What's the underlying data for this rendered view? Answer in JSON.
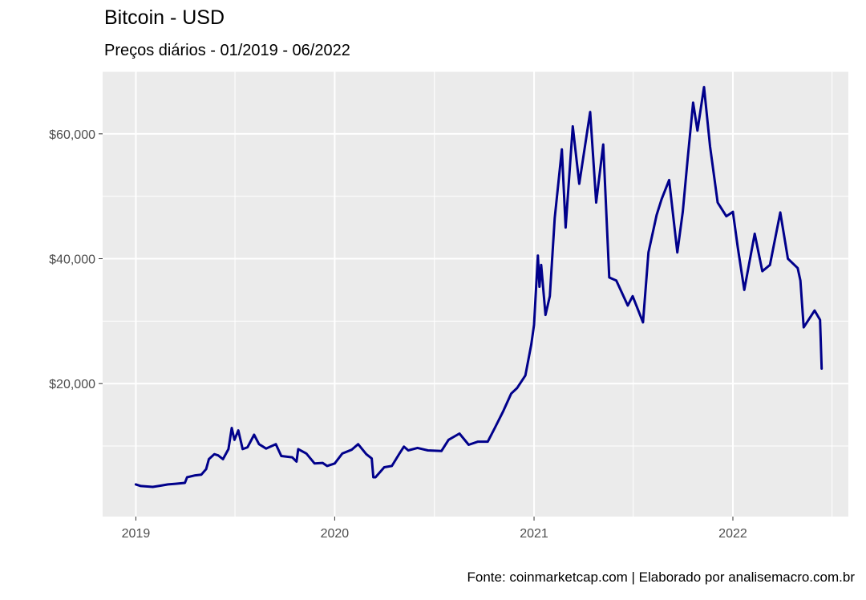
{
  "chart_data": {
    "type": "line",
    "title": "Bitcoin - USD",
    "subtitle": "Preços diários - 01/2019 - 06/2022",
    "caption": "Fonte: coinmarketcap.com | Elaborado por analisemacro.com.br",
    "xlabel": "",
    "ylabel": "",
    "x_ticks": [
      {
        "value": "2019-01-01",
        "label": "2019"
      },
      {
        "value": "2020-01-01",
        "label": "2020"
      },
      {
        "value": "2021-01-01",
        "label": "2021"
      },
      {
        "value": "2022-01-01",
        "label": "2022"
      }
    ],
    "y_ticks": [
      {
        "value": 20000,
        "label": "$20,000"
      },
      {
        "value": 40000,
        "label": "$40,000"
      },
      {
        "value": 60000,
        "label": "$60,000"
      }
    ],
    "xlim": [
      "2018-11-01",
      "2022-08-01"
    ],
    "ylim": [
      -1300,
      70000
    ],
    "grid": true,
    "legend": "none",
    "colors": {
      "panel": "#EBEBEB",
      "grid": "#FFFFFF",
      "line": "#00008B"
    },
    "series": [
      {
        "color": "#00008B",
        "points": [
          [
            "2019-01-01",
            3850
          ],
          [
            "2019-01-10",
            3600
          ],
          [
            "2019-02-01",
            3450
          ],
          [
            "2019-02-15",
            3650
          ],
          [
            "2019-03-01",
            3850
          ],
          [
            "2019-03-15",
            3950
          ],
          [
            "2019-04-01",
            4100
          ],
          [
            "2019-04-05",
            5000
          ],
          [
            "2019-04-20",
            5300
          ],
          [
            "2019-05-01",
            5400
          ],
          [
            "2019-05-10",
            6300
          ],
          [
            "2019-05-15",
            7900
          ],
          [
            "2019-05-25",
            8700
          ],
          [
            "2019-06-01",
            8500
          ],
          [
            "2019-06-10",
            7900
          ],
          [
            "2019-06-20",
            9500
          ],
          [
            "2019-06-26",
            12900
          ],
          [
            "2019-07-01",
            11000
          ],
          [
            "2019-07-08",
            12500
          ],
          [
            "2019-07-16",
            9500
          ],
          [
            "2019-07-25",
            9800
          ],
          [
            "2019-08-06",
            11800
          ],
          [
            "2019-08-15",
            10300
          ],
          [
            "2019-08-28",
            9600
          ],
          [
            "2019-09-15",
            10300
          ],
          [
            "2019-09-25",
            8400
          ],
          [
            "2019-10-15",
            8200
          ],
          [
            "2019-10-23",
            7500
          ],
          [
            "2019-10-26",
            9500
          ],
          [
            "2019-11-10",
            8800
          ],
          [
            "2019-11-25",
            7200
          ],
          [
            "2019-12-10",
            7300
          ],
          [
            "2019-12-18",
            6800
          ],
          [
            "2020-01-01",
            7200
          ],
          [
            "2020-01-15",
            8800
          ],
          [
            "2020-02-01",
            9400
          ],
          [
            "2020-02-13",
            10300
          ],
          [
            "2020-02-28",
            8700
          ],
          [
            "2020-03-09",
            8000
          ],
          [
            "2020-03-12",
            5000
          ],
          [
            "2020-03-16",
            5000
          ],
          [
            "2020-04-01",
            6600
          ],
          [
            "2020-04-15",
            6800
          ],
          [
            "2020-04-29",
            8800
          ],
          [
            "2020-05-07",
            9900
          ],
          [
            "2020-05-15",
            9300
          ],
          [
            "2020-06-01",
            9700
          ],
          [
            "2020-06-20",
            9300
          ],
          [
            "2020-07-15",
            9200
          ],
          [
            "2020-07-28",
            11000
          ],
          [
            "2020-08-17",
            12000
          ],
          [
            "2020-09-03",
            10200
          ],
          [
            "2020-09-20",
            10700
          ],
          [
            "2020-10-08",
            10700
          ],
          [
            "2020-10-21",
            12900
          ],
          [
            "2020-11-05",
            15500
          ],
          [
            "2020-11-20",
            18400
          ],
          [
            "2020-12-01",
            19300
          ],
          [
            "2020-12-16",
            21300
          ],
          [
            "2020-12-27",
            26300
          ],
          [
            "2021-01-01",
            29400
          ],
          [
            "2021-01-08",
            40500
          ],
          [
            "2021-01-11",
            35500
          ],
          [
            "2021-01-14",
            39000
          ],
          [
            "2021-01-22",
            31000
          ],
          [
            "2021-01-30",
            34000
          ],
          [
            "2021-02-08",
            46500
          ],
          [
            "2021-02-21",
            57500
          ],
          [
            "2021-02-28",
            45000
          ],
          [
            "2021-03-13",
            61200
          ],
          [
            "2021-03-25",
            52000
          ],
          [
            "2021-04-14",
            63500
          ],
          [
            "2021-04-25",
            49000
          ],
          [
            "2021-05-08",
            58300
          ],
          [
            "2021-05-19",
            37000
          ],
          [
            "2021-06-01",
            36500
          ],
          [
            "2021-06-22",
            32500
          ],
          [
            "2021-07-01",
            34000
          ],
          [
            "2021-07-20",
            29800
          ],
          [
            "2021-07-30",
            41000
          ],
          [
            "2021-08-14",
            47000
          ],
          [
            "2021-08-23",
            49500
          ],
          [
            "2021-09-06",
            52600
          ],
          [
            "2021-09-21",
            41000
          ],
          [
            "2021-10-01",
            47500
          ],
          [
            "2021-10-10",
            56000
          ],
          [
            "2021-10-20",
            65000
          ],
          [
            "2021-10-28",
            60500
          ],
          [
            "2021-11-09",
            67500
          ],
          [
            "2021-11-20",
            58000
          ],
          [
            "2021-12-04",
            49000
          ],
          [
            "2021-12-20",
            46800
          ],
          [
            "2022-01-01",
            47500
          ],
          [
            "2022-01-10",
            41800
          ],
          [
            "2022-01-22",
            35000
          ],
          [
            "2022-02-10",
            44000
          ],
          [
            "2022-02-24",
            38000
          ],
          [
            "2022-03-10",
            39000
          ],
          [
            "2022-03-29",
            47400
          ],
          [
            "2022-04-12",
            40000
          ],
          [
            "2022-04-30",
            38500
          ],
          [
            "2022-05-05",
            36500
          ],
          [
            "2022-05-11",
            29000
          ],
          [
            "2022-05-31",
            31700
          ],
          [
            "2022-06-10",
            30200
          ],
          [
            "2022-06-13",
            22400
          ]
        ]
      }
    ]
  }
}
